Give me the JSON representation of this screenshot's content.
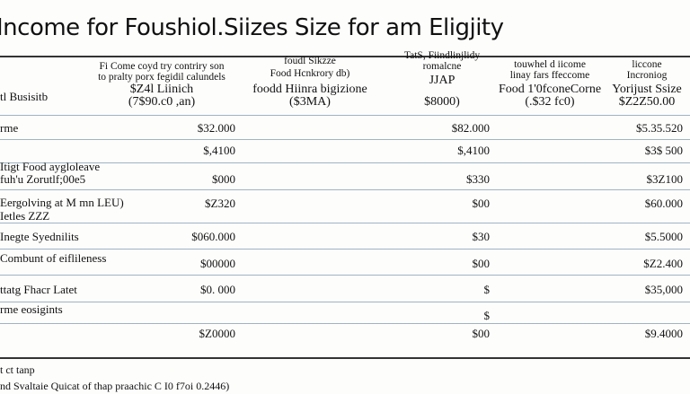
{
  "title": "Income for Foushiol.Siizes Size for am Eligjity",
  "table": {
    "header": {
      "row_label": "tl Busisitb",
      "columns": [
        [
          "Fi Come coyd try contriry son",
          "to pralty porx fegidil calundels",
          "$Z4l Liinich",
          "(7$90.c0 ,an)"
        ],
        [
          "foudl Sikzze",
          "Food Hcnkrory db)",
          "foodd Hiinra bigizione",
          "($3MA)"
        ],
        [
          "TatS, Fiindlinjlidy",
          "romalcne",
          "JJAP",
          "$8000)"
        ],
        [
          "touwhel d iicome",
          "linay fars ffeccome",
          "Food 1'0fconeCorne",
          "(.$32 fc0)"
        ],
        [
          "liccone",
          "Incroniog",
          "Yorijust Ssize",
          "$Z2Z50.00"
        ]
      ]
    },
    "rows": [
      {
        "label": [
          "rme"
        ],
        "a": "$32.000",
        "b": "$82.000",
        "c": "$5.35.520"
      },
      {
        "a": "$,4100",
        "b": "$,4100",
        "c": "$3$ 500"
      },
      {
        "label": [
          "Itigt Food aygloleave",
          "fuh'u Zorutlf;00e5"
        ],
        "a": "$000",
        "b": "$330",
        "c": "$3Z100"
      },
      {
        "label": [
          "Eergolving at M mn LEU)",
          "Ietles ZZZ"
        ],
        "a": "$Z320",
        "b": "$00",
        "c": "$60.000"
      },
      {
        "label": [
          "Inegte Syednilits"
        ],
        "a": "$060.000",
        "b": "$30",
        "c": "$5.5000"
      },
      {
        "label": [
          "Combunt of eiflileness"
        ],
        "a": "$00000",
        "b": "$00",
        "c": "$Z2.400"
      },
      {
        "label": [
          "ttatg Fhacr Latet"
        ],
        "a": "$0. 000",
        "b": "$",
        "c": "$35,000"
      },
      {
        "label": [
          "rme eosigints"
        ],
        "b": "$"
      },
      {
        "a": "$Z0000",
        "b": "$00",
        "c": "$9.4000"
      }
    ]
  },
  "footer": [
    "t ct tanp",
    "nd Svaltaie Quicat of thap praachic C I0 f7oi 0.2446)"
  ]
}
